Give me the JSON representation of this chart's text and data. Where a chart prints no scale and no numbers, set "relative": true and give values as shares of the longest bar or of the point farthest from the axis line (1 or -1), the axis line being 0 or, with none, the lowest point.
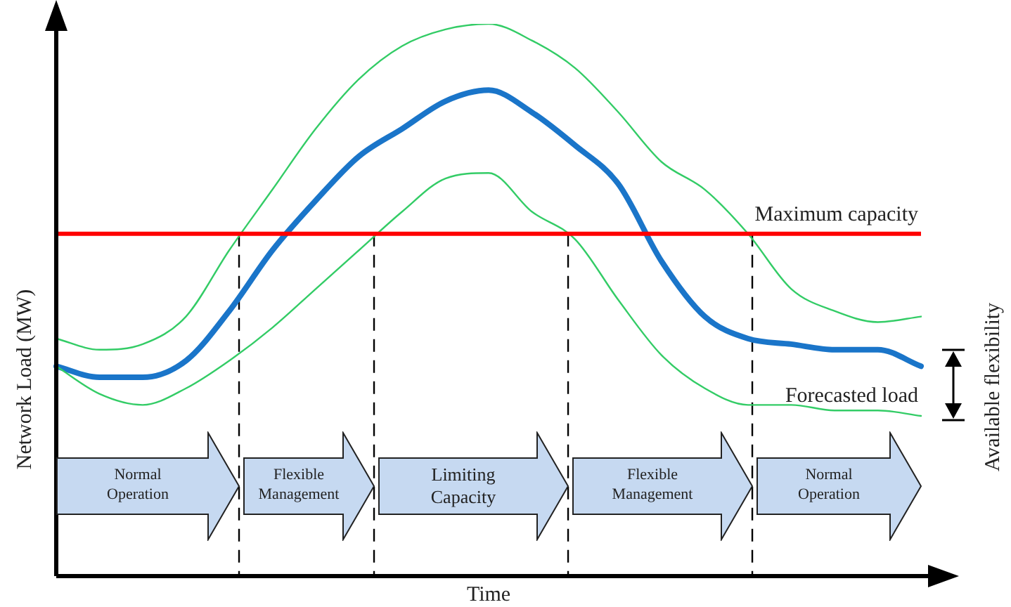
{
  "chart_data": {
    "type": "line",
    "relative": true,
    "xlabel": "Time",
    "ylabel": "Network Load (MW)",
    "legend": false,
    "marker": "none",
    "line_style": "solid",
    "tick_labels": false,
    "categories": [
      null,
      null,
      null,
      null,
      null,
      null,
      null,
      null,
      null,
      null,
      null,
      null,
      null,
      null,
      null,
      null,
      null,
      null,
      null,
      null,
      null
    ],
    "series": [
      {
        "color": "#33cc66",
        "values": [
          0.43,
          0.41,
          0.42,
          0.47,
          0.59,
          0.7,
          0.81,
          0.9,
          0.96,
          0.99,
          1.0,
          0.97,
          0.92,
          0.84,
          0.75,
          0.7,
          0.62,
          0.52,
          0.48,
          0.46,
          0.47
        ]
      },
      {
        "color": "#33cc66",
        "values": [
          0.38,
          0.33,
          0.31,
          0.34,
          0.39,
          0.45,
          0.52,
          0.59,
          0.66,
          0.72,
          0.73,
          0.66,
          0.61,
          0.5,
          0.4,
          0.34,
          0.31,
          0.31,
          0.3,
          0.3,
          0.29
        ]
      },
      {
        "name": "Forecasted load",
        "color": "#1a75c9",
        "values": [
          0.38,
          0.36,
          0.36,
          0.39,
          0.48,
          0.59,
          0.68,
          0.76,
          0.81,
          0.86,
          0.88,
          0.84,
          0.78,
          0.71,
          0.57,
          0.47,
          0.43,
          0.42,
          0.41,
          0.41,
          0.38
        ]
      }
    ],
    "ref_lines": [
      {
        "axis": "y",
        "value": 0.62,
        "label": "Maximum capacity",
        "color": "#ff0000"
      }
    ],
    "annotations": [
      "Normal Operation",
      "Flexible Management",
      "Limiting Capacity",
      "Flexible Management",
      "Normal Operation",
      "Available flexibility"
    ]
  }
}
